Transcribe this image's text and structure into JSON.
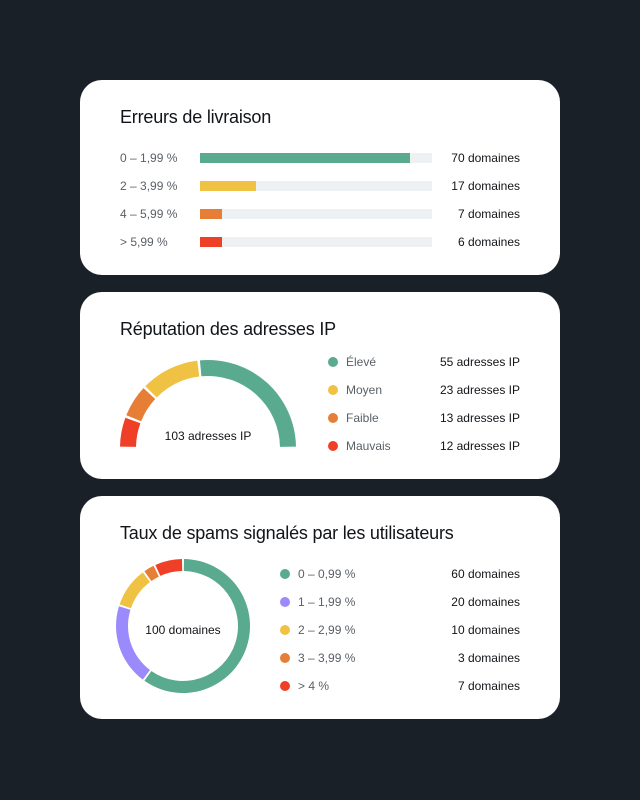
{
  "delivery_errors": {
    "title": "Erreurs de livraison",
    "rows": [
      {
        "label": "0 – 1,99 %",
        "value": "70 domaines",
        "count": 70,
        "color": "#5aaa8f",
        "fill_pct": 90.5
      },
      {
        "label": "2 – 3,99 %",
        "value": "17 domaines",
        "count": 17,
        "color": "#f0c244",
        "fill_pct": 24
      },
      {
        "label": "4 – 5,99 %",
        "value": "7 domaines",
        "count": 7,
        "color": "#e67e35",
        "fill_pct": 9.5
      },
      {
        "label": "> 5,99 %",
        "value": "6 domaines",
        "count": 6,
        "color": "#ef4027",
        "fill_pct": 9.5
      }
    ]
  },
  "ip_reputation": {
    "title": "Réputation des adresses IP",
    "center_label": "103 adresses IP",
    "legend": [
      {
        "label": "Élevé",
        "value": "55 adresses IP",
        "count": 55,
        "color": "#5aaa8f"
      },
      {
        "label": "Moyen",
        "value": "23 adresses IP",
        "count": 23,
        "color": "#f0c244"
      },
      {
        "label": "Faible",
        "value": "13 adresses IP",
        "count": 13,
        "color": "#e67e35"
      },
      {
        "label": "Mauvais",
        "value": "12 adresses IP",
        "count": 12,
        "color": "#ef4027"
      }
    ]
  },
  "spam_rate": {
    "title": "Taux de spams signalés par les utilisateurs",
    "center_label": "100 domaines",
    "legend": [
      {
        "label": "0 – 0,99 %",
        "value": "60 domaines",
        "count": 60,
        "color": "#5aaa8f"
      },
      {
        "label": "1 – 1,99 %",
        "value": "20 domaines",
        "count": 20,
        "color": "#9b8afb"
      },
      {
        "label": "2 – 2,99 %",
        "value": "10 domaines",
        "count": 10,
        "color": "#f0c244"
      },
      {
        "label": "3 – 3,99 %",
        "value": "3 domaines",
        "count": 3,
        "color": "#e67e35"
      },
      {
        "label": "> 4 %",
        "value": "7 domaines",
        "count": 7,
        "color": "#ef4027"
      }
    ]
  },
  "chart_data": [
    {
      "type": "bar",
      "title": "Erreurs de livraison",
      "categories": [
        "0 – 1,99 %",
        "2 – 3,99 %",
        "4 – 5,99 %",
        "> 5,99 %"
      ],
      "values": [
        70,
        17,
        7,
        6
      ],
      "unit": "domaines",
      "orientation": "horizontal"
    },
    {
      "type": "pie",
      "subtype": "half-donut gauge",
      "title": "Réputation des adresses IP",
      "categories": [
        "Élevé",
        "Moyen",
        "Faible",
        "Mauvais"
      ],
      "values": [
        55,
        23,
        13,
        12
      ],
      "total": 103,
      "unit": "adresses IP"
    },
    {
      "type": "pie",
      "subtype": "donut",
      "title": "Taux de spams signalés par les utilisateurs",
      "categories": [
        "0 – 0,99 %",
        "1 – 1,99 %",
        "2 – 2,99 %",
        "3 – 3,99 %",
        "> 4 %"
      ],
      "values": [
        60,
        20,
        10,
        3,
        7
      ],
      "total": 100,
      "unit": "domaines"
    }
  ]
}
